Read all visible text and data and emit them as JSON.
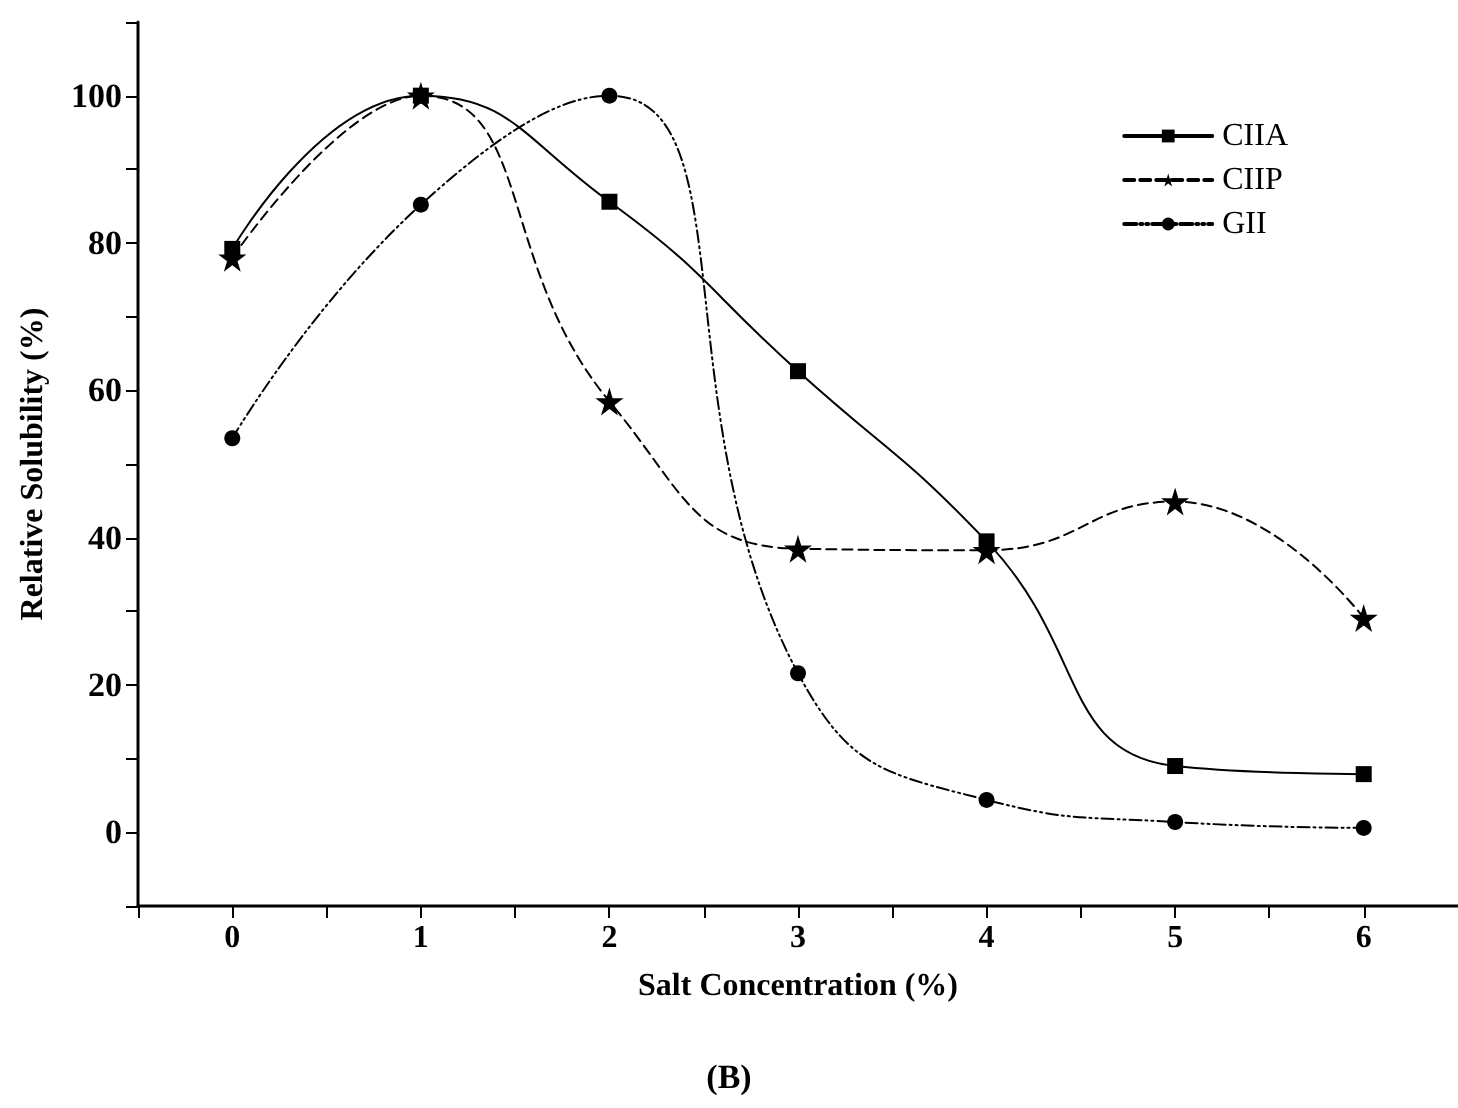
{
  "chart_data": {
    "type": "line",
    "xlabel": "Salt Concentration (%)",
    "ylabel": "Relative Solubility (%)",
    "x": [
      0,
      1,
      2,
      3,
      4,
      5,
      6
    ],
    "series": [
      {
        "name": "CIIA",
        "color": "#000000",
        "marker": "square",
        "line_style": "solid",
        "values": [
          79.2,
          100,
          85.6,
          62.6,
          39.5,
          9.0,
          7.9
        ]
      },
      {
        "name": "CIIP",
        "color": "#000000",
        "marker": "star",
        "line_style": "dashed",
        "values": [
          78.0,
          100,
          58.5,
          38.5,
          38.3,
          44.9,
          29.1
        ]
      },
      {
        "name": "GII",
        "color": "#000000",
        "marker": "circle",
        "line_style": "dotted",
        "values": [
          53.5,
          85.2,
          100,
          21.6,
          4.4,
          1.4,
          0.6
        ]
      }
    ],
    "xlim": [
      -0.5,
      6.5
    ],
    "xticks": [
      {
        "value": -0.5,
        "label": null
      },
      0,
      {
        "value": 0.5,
        "label": null
      },
      1,
      {
        "value": 1.5,
        "label": null
      },
      2,
      {
        "value": 2.5,
        "label": null
      },
      3,
      {
        "value": 3.5,
        "label": null
      },
      4,
      {
        "value": 4.5,
        "label": null
      },
      5,
      {
        "value": 5.5,
        "label": null
      },
      6,
      {
        "value": 6.5,
        "label": null
      }
    ],
    "ylim": [
      -10,
      110
    ],
    "yticks": [
      {
        "value": -10,
        "label": null
      },
      0,
      {
        "value": 10,
        "label": null
      },
      20,
      {
        "value": 30,
        "label": null
      },
      40,
      {
        "value": 50,
        "label": null
      },
      60,
      {
        "value": 70,
        "label": null
      },
      80,
      {
        "value": 90,
        "label": null
      },
      100,
      {
        "value": 110,
        "label": null
      }
    ],
    "legend": "top right",
    "annotations": [
      "(B)"
    ]
  }
}
